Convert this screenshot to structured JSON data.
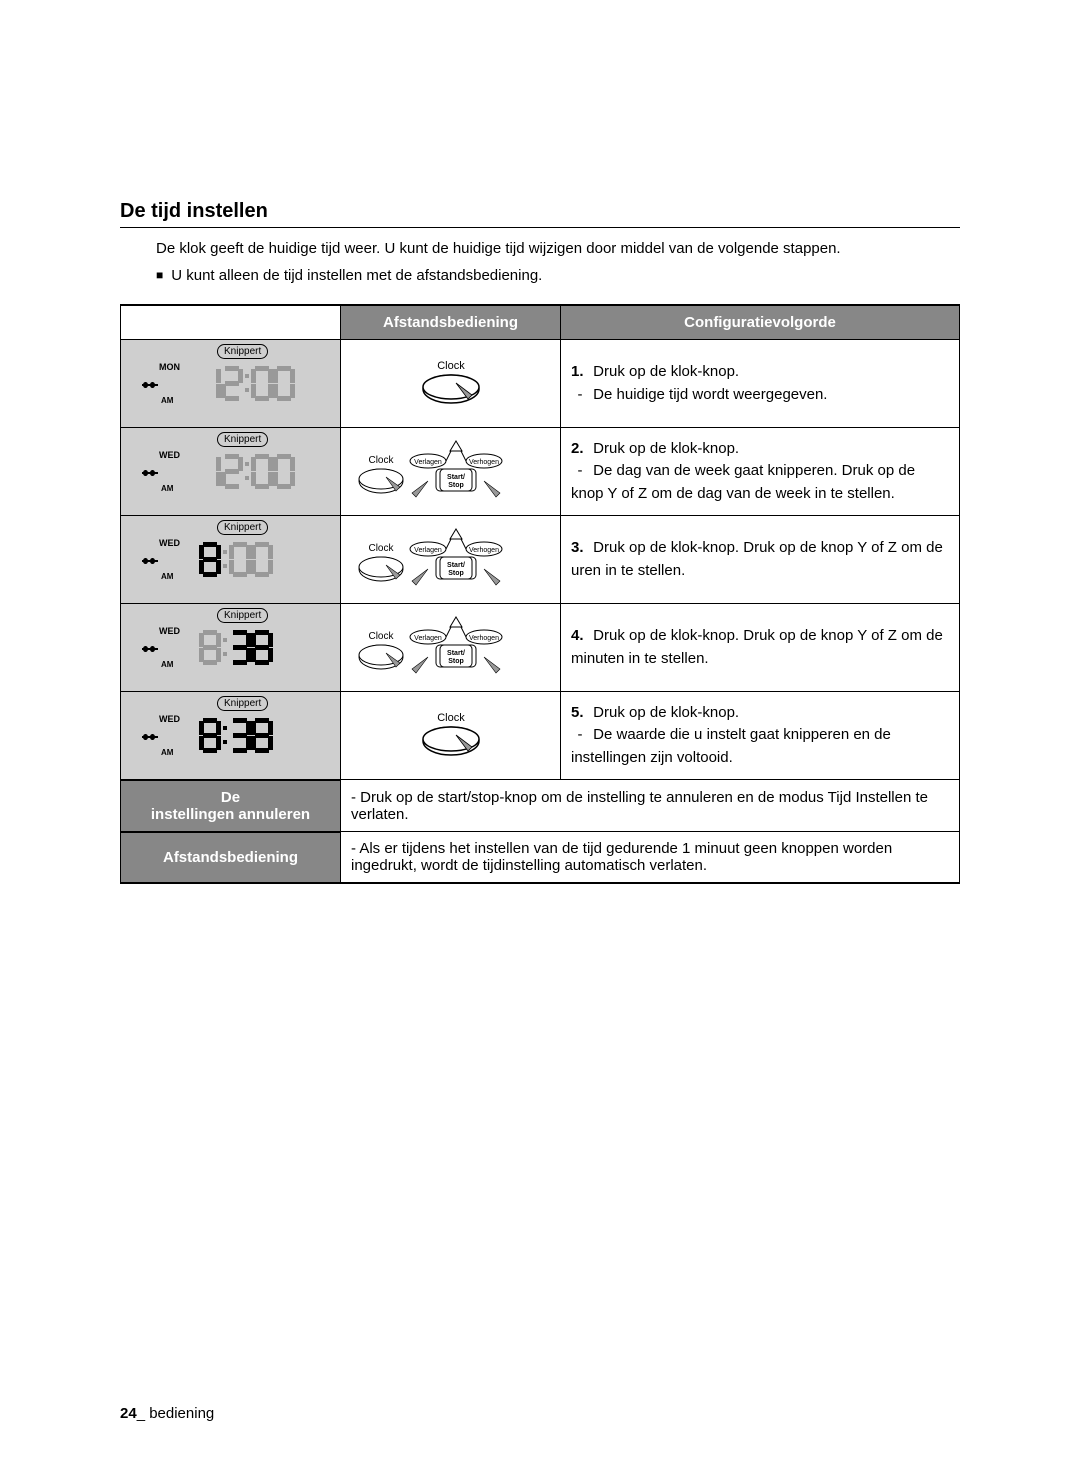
{
  "section_title": "De tijd instellen",
  "intro": "De klok geeft de huidige tijd weer. U kunt de huidige tijd wijzigen door middel van de volgende stappen.",
  "bullet": "U kunt alleen de tijd instellen met de afstandsbediening.",
  "headers": {
    "col1": "",
    "col2": "Afstandsbediening",
    "col3": "Configuratievolgorde"
  },
  "knippert": "Knippert",
  "ampm": "AM",
  "remote": {
    "clock": "Clock",
    "verlagen": "Verlagen",
    "verhogen": "Verhogen",
    "startstop": "Start/\nStop"
  },
  "rows": [
    {
      "day": "MON",
      "digits_style": "ghost",
      "digits": "12:00",
      "remote_type": "clock_only",
      "config_num": "1.",
      "config_bold": "Druk op de klok-knop.",
      "config_rest": "De huidige tijd wordt weergegeven."
    },
    {
      "day": "WED",
      "digits_style": "ghost",
      "digits": "12:00",
      "remote_type": "full",
      "config_num": "2.",
      "config_bold": "Druk op de klok-knop.",
      "config_rest": "De dag van de week gaat knipperen. Druk op de knop Y of Z om de dag van de week in te stellen."
    },
    {
      "day": "WED",
      "digits_style": "mixed_hour",
      "digits": "8:00",
      "remote_type": "full",
      "config_num": "3.",
      "config_bold": "Druk op de klok-knop. Druk op de knop Y of Z om de uren in te stellen.",
      "config_rest": ""
    },
    {
      "day": "WED",
      "digits_style": "mixed_min",
      "digits": "8:38",
      "remote_type": "full",
      "config_num": "4.",
      "config_bold": "Druk op de klok-knop. Druk op de knop Y of Z om de minuten in te stellen.",
      "config_rest": ""
    },
    {
      "day": "WED",
      "digits_style": "solid",
      "digits": "8:38",
      "remote_type": "clock_only",
      "config_num": "5.",
      "config_bold": "Druk op de klok-knop.",
      "config_rest": "De waarde die u instelt gaat knipperen en de instellingen zijn voltooid."
    }
  ],
  "footer_rows": [
    {
      "label": "De instellingen annuleren",
      "text": "Druk op de start/stop-knop om de instelling te annuleren en de modus Tijd Instellen te verlaten."
    },
    {
      "label": "Afstandsbediening",
      "text": "Als er tijdens het instellen van de tijd gedurende 1 minuut geen knoppen worden ingedrukt, wordt de tijdinstelling automatisch verlaten."
    }
  ],
  "page_num": "24",
  "page_label": "_ bediening",
  "colors": {
    "header_bg": "#878787",
    "display_bg": "#cfcfcf",
    "ghost": "#999999",
    "text": "#000000"
  }
}
